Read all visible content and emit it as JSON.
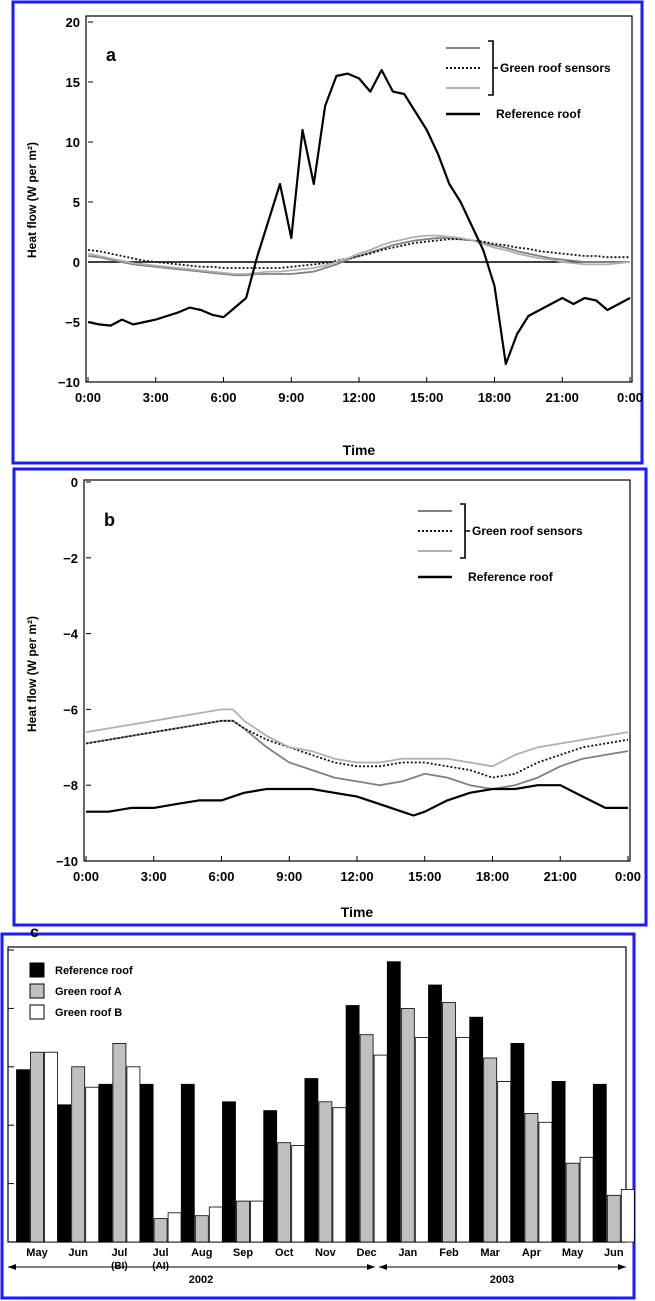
{
  "chart_data": [
    {
      "panel": "a",
      "type": "line",
      "xlabel": "Time",
      "ylabel": "Heat flow (W per m²)",
      "ylim": [
        -10,
        20
      ],
      "yticks": [
        "−10",
        "−5",
        "0",
        "5",
        "10",
        "15",
        "20"
      ],
      "xticks": [
        "0:00",
        "3:00",
        "6:00",
        "9:00",
        "12:00",
        "15:00",
        "18:00",
        "21:00",
        "0:00"
      ],
      "x": [
        0,
        0.5,
        1,
        1.5,
        2,
        2.5,
        3,
        3.5,
        4,
        4.5,
        5,
        5.5,
        6,
        6.5,
        7,
        7.5,
        8,
        8.5,
        9,
        9.5,
        10,
        10.5,
        11,
        11.5,
        12,
        12.5,
        13,
        13.5,
        14,
        14.5,
        15,
        15.5,
        16,
        16.5,
        17,
        17.5,
        18,
        18.5,
        19,
        19.5,
        20,
        20.5,
        21,
        21.5,
        22,
        22.5,
        23,
        23.5,
        24
      ],
      "legend": {
        "group_label": "Green roof sensors",
        "reference_label": "Reference roof"
      },
      "series": [
        {
          "role": "green-1",
          "color": "#808080",
          "dash": "",
          "values": [
            0.5,
            0.4,
            0.2,
            0.0,
            -0.2,
            -0.3,
            -0.4,
            -0.5,
            -0.6,
            -0.7,
            -0.8,
            -0.9,
            -1.0,
            -1.1,
            -1.1,
            -1.0,
            -1.0,
            -1.0,
            -1.0,
            -0.9,
            -0.8,
            -0.5,
            -0.2,
            0.2,
            0.5,
            0.8,
            1.1,
            1.4,
            1.6,
            1.8,
            1.9,
            2.0,
            2.0,
            1.9,
            1.8,
            1.6,
            1.4,
            1.2,
            0.9,
            0.7,
            0.5,
            0.3,
            0.2,
            0.1,
            0.0,
            0.0,
            0.0,
            0.0,
            0.0
          ]
        },
        {
          "role": "green-2",
          "color": "#111111",
          "dash": "2,2",
          "values": [
            1.0,
            0.9,
            0.7,
            0.5,
            0.3,
            0.1,
            0.0,
            -0.1,
            -0.2,
            -0.3,
            -0.4,
            -0.4,
            -0.5,
            -0.5,
            -0.5,
            -0.5,
            -0.5,
            -0.5,
            -0.4,
            -0.3,
            -0.2,
            -0.1,
            0.1,
            0.3,
            0.5,
            0.7,
            1.0,
            1.2,
            1.4,
            1.6,
            1.7,
            1.8,
            1.9,
            1.9,
            1.8,
            1.7,
            1.5,
            1.4,
            1.2,
            1.1,
            0.9,
            0.8,
            0.7,
            0.6,
            0.5,
            0.5,
            0.4,
            0.4,
            0.4
          ]
        },
        {
          "role": "green-3",
          "color": "#b0b0b0",
          "dash": "",
          "values": [
            0.7,
            0.5,
            0.3,
            0.1,
            -0.1,
            -0.2,
            -0.3,
            -0.4,
            -0.5,
            -0.6,
            -0.7,
            -0.8,
            -0.9,
            -1.0,
            -1.0,
            -0.9,
            -0.8,
            -0.8,
            -0.7,
            -0.6,
            -0.5,
            -0.3,
            0.0,
            0.3,
            0.7,
            1.0,
            1.4,
            1.7,
            1.9,
            2.1,
            2.2,
            2.2,
            2.1,
            2.0,
            1.8,
            1.5,
            1.2,
            1.0,
            0.7,
            0.5,
            0.3,
            0.2,
            0.0,
            -0.1,
            -0.2,
            -0.2,
            -0.2,
            -0.1,
            0.0
          ]
        },
        {
          "role": "reference",
          "color": "#000000",
          "dash": "",
          "values": [
            -5.0,
            -5.2,
            -5.3,
            -4.8,
            -5.2,
            -5.0,
            -4.8,
            -4.5,
            -4.2,
            -3.8,
            -4.0,
            -4.4,
            -4.6,
            -3.8,
            -3.0,
            0.5,
            3.5,
            6.5,
            2.0,
            11.0,
            6.5,
            13.0,
            15.5,
            15.7,
            15.3,
            14.2,
            16.0,
            14.2,
            14.0,
            12.5,
            11.0,
            9.0,
            6.5,
            5.0,
            3.0,
            1.0,
            -2.0,
            -8.5,
            -6.0,
            -4.5,
            -4.0,
            -3.5,
            -3.0,
            -3.5,
            -3.0,
            -3.2,
            -4.0,
            -3.5,
            -3.0
          ]
        }
      ]
    },
    {
      "panel": "b",
      "type": "line",
      "xlabel": "Time",
      "ylabel": "Heat flow (W per m²)",
      "ylim": [
        -10,
        0
      ],
      "yticks": [
        "−10",
        "−8",
        "−6",
        "−4",
        "−2",
        "0"
      ],
      "xticks": [
        "0:00",
        "3:00",
        "6:00",
        "9:00",
        "12:00",
        "15:00",
        "18:00",
        "21:00",
        "0:00"
      ],
      "x": [
        0,
        1,
        2,
        3,
        4,
        5,
        6,
        6.5,
        7,
        8,
        9,
        10,
        11,
        12,
        13,
        14,
        14.5,
        15,
        16,
        17,
        18,
        19,
        20,
        21,
        22,
        23,
        24
      ],
      "legend": {
        "group_label": "Green roof sensors",
        "reference_label": "Reference roof"
      },
      "series": [
        {
          "role": "green-1",
          "color": "#808080",
          "dash": "",
          "values": [
            -6.9,
            -6.8,
            -6.7,
            -6.6,
            -6.5,
            -6.4,
            -6.3,
            -6.3,
            -6.5,
            -7.0,
            -7.4,
            -7.6,
            -7.8,
            -7.9,
            -8.0,
            -7.9,
            -7.8,
            -7.7,
            -7.8,
            -8.0,
            -8.1,
            -8.0,
            -7.8,
            -7.5,
            -7.3,
            -7.2,
            -7.1
          ]
        },
        {
          "role": "green-2",
          "color": "#111111",
          "dash": "2,2",
          "values": [
            -6.9,
            -6.8,
            -6.7,
            -6.6,
            -6.5,
            -6.4,
            -6.3,
            -6.3,
            -6.5,
            -6.8,
            -7.0,
            -7.2,
            -7.4,
            -7.5,
            -7.5,
            -7.4,
            -7.4,
            -7.4,
            -7.5,
            -7.6,
            -7.8,
            -7.7,
            -7.4,
            -7.2,
            -7.0,
            -6.9,
            -6.8
          ]
        },
        {
          "role": "green-3",
          "color": "#b0b0b0",
          "dash": "",
          "values": [
            -6.6,
            -6.5,
            -6.4,
            -6.3,
            -6.2,
            -6.1,
            -6.0,
            -6.0,
            -6.3,
            -6.7,
            -7.0,
            -7.1,
            -7.3,
            -7.4,
            -7.4,
            -7.3,
            -7.3,
            -7.3,
            -7.3,
            -7.4,
            -7.5,
            -7.2,
            -7.0,
            -6.9,
            -6.8,
            -6.7,
            -6.6
          ]
        },
        {
          "role": "reference",
          "color": "#000000",
          "dash": "",
          "values": [
            -8.7,
            -8.7,
            -8.6,
            -8.6,
            -8.5,
            -8.4,
            -8.4,
            -8.3,
            -8.2,
            -8.1,
            -8.1,
            -8.1,
            -8.2,
            -8.3,
            -8.5,
            -8.7,
            -8.8,
            -8.7,
            -8.4,
            -8.2,
            -8.1,
            -8.1,
            -8.0,
            -8.0,
            -8.3,
            -8.6,
            -8.6
          ]
        }
      ]
    },
    {
      "panel": "c",
      "type": "bar",
      "categories": [
        [
          "May",
          ""
        ],
        [
          "Jun",
          ""
        ],
        [
          "Jul",
          "(BI)"
        ],
        [
          "Jul",
          "(AI)"
        ],
        [
          "Aug",
          ""
        ],
        [
          "Sep",
          ""
        ],
        [
          "Oct",
          ""
        ],
        [
          "Nov",
          ""
        ],
        [
          "Dec",
          ""
        ],
        [
          "Jan",
          ""
        ],
        [
          "Feb",
          ""
        ],
        [
          "Mar",
          ""
        ],
        [
          "Apr",
          ""
        ],
        [
          "May",
          ""
        ],
        [
          "Jun",
          ""
        ]
      ],
      "ylim": [
        0,
        100
      ],
      "year_labels": [
        "2002",
        "2003"
      ],
      "series": [
        {
          "name": "Reference roof",
          "color": "#000000",
          "values": [
            59,
            47,
            54,
            54,
            54,
            48,
            45,
            56,
            81,
            96,
            88,
            77,
            68,
            55,
            54
          ]
        },
        {
          "name": "Green roof A",
          "color": "#c0c0c0",
          "values": [
            65,
            60,
            68,
            8,
            9,
            14,
            34,
            48,
            71,
            80,
            82,
            63,
            44,
            27,
            16
          ]
        },
        {
          "name": "Green roof B",
          "color": "#ffffff",
          "values": [
            65,
            53,
            60,
            10,
            12,
            14,
            33,
            46,
            64,
            70,
            70,
            55,
            41,
            29,
            18
          ]
        }
      ]
    }
  ]
}
